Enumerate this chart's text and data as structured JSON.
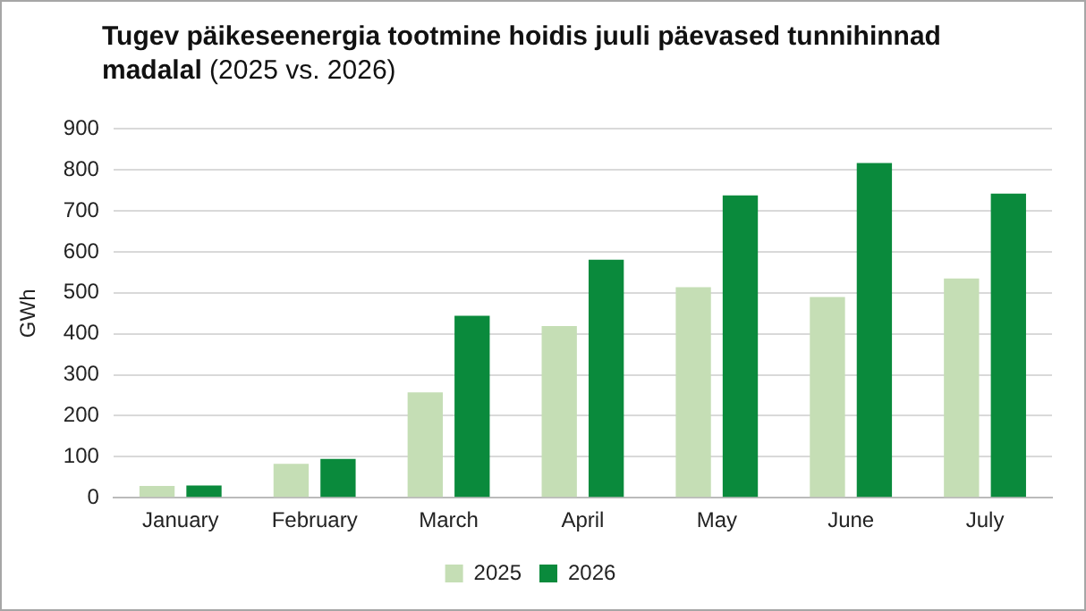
{
  "chart_data": {
    "type": "bar",
    "title": "Tugev päikeseenergia tootmine hoidis juuli päevased tunnihinnad madalal",
    "subtitle": "(2025 vs. 2026)",
    "ylabel": "GWh",
    "categories": [
      "January",
      "February",
      "March",
      "April",
      "May",
      "June",
      "July"
    ],
    "series": [
      {
        "name": "2025",
        "color": "#c5deb5",
        "values": [
          29,
          83,
          257,
          419,
          514,
          490,
          535
        ]
      },
      {
        "name": "2026",
        "color": "#0a8a3c",
        "values": [
          30,
          95,
          444,
          581,
          738,
          817,
          742
        ]
      }
    ],
    "ylim": [
      0,
      900
    ],
    "yticks": [
      0,
      100,
      200,
      300,
      400,
      500,
      600,
      700,
      800,
      900
    ],
    "grid": "y",
    "legend": "bottom"
  }
}
